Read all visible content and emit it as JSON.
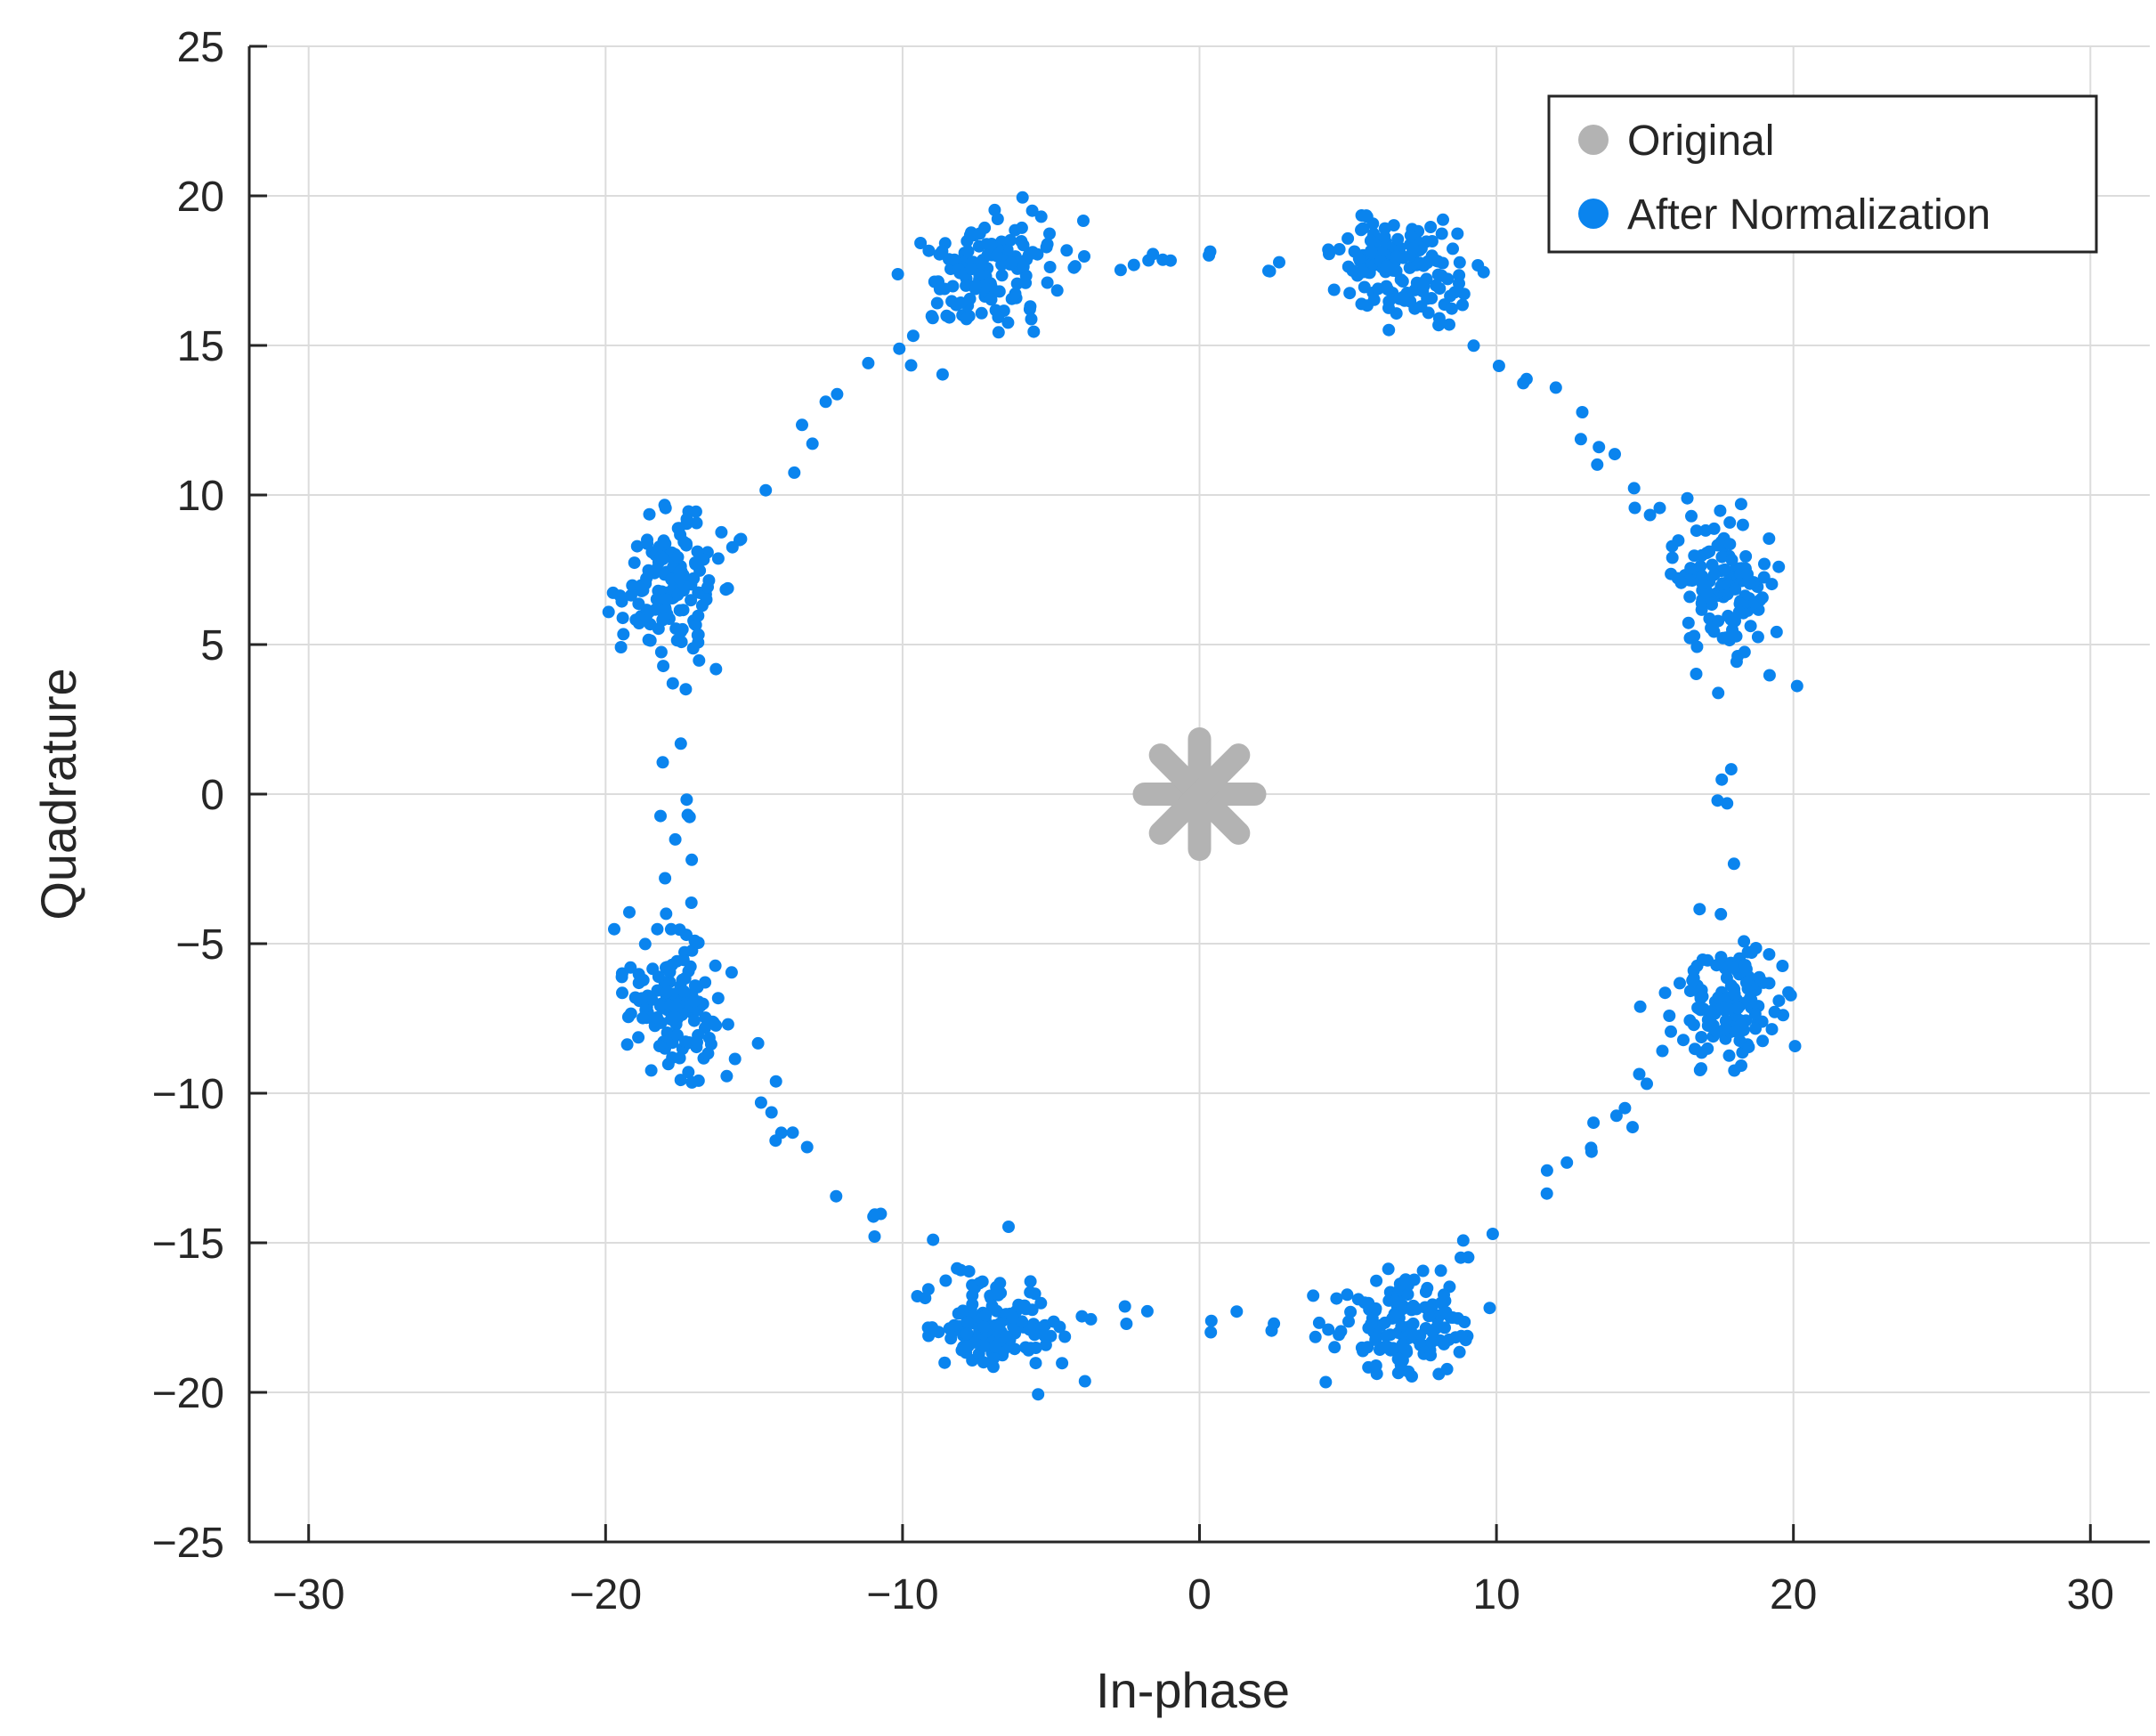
{
  "chart_data": {
    "type": "scatter",
    "title": "",
    "xlabel": "In-phase",
    "ylabel": "Quadrature",
    "xlim": [
      -32,
      32
    ],
    "ylim": [
      -25,
      25
    ],
    "xticks": [
      -30,
      -20,
      -10,
      0,
      10,
      20,
      30
    ],
    "yticks": [
      -25,
      -20,
      -15,
      -10,
      -5,
      0,
      5,
      10,
      15,
      20,
      25
    ],
    "xtick_labels": [
      "−30",
      "−20",
      "−10",
      "0",
      "10",
      "20",
      "30"
    ],
    "ytick_labels": [
      "−25",
      "−20",
      "−15",
      "−10",
      "−5",
      "0",
      "5",
      "10",
      "15",
      "20",
      "25"
    ],
    "grid": true,
    "legend_position": "top-right",
    "colors": {
      "original": "#b3b3b3",
      "normalized": "#0a84ee"
    },
    "series": [
      {
        "name": "Original",
        "marker": "asterisk",
        "points": [
          [
            0,
            0
          ]
        ]
      },
      {
        "name": "After Normalization",
        "marker": "dot",
        "clusters": [
          {
            "center": [
              6.8,
              17.6
            ],
            "count": 130
          },
          {
            "center": [
              17.8,
              7.0
            ],
            "count": 130
          },
          {
            "center": [
              17.8,
              -7.0
            ],
            "count": 130
          },
          {
            "center": [
              7.0,
              -17.7
            ],
            "count": 130
          },
          {
            "center": [
              -7.0,
              -17.7
            ],
            "count": 130
          },
          {
            "center": [
              -17.8,
              -7.0
            ],
            "count": 130
          },
          {
            "center": [
              -17.8,
              7.0
            ],
            "count": 130
          },
          {
            "center": [
              -7.0,
              17.6
            ],
            "count": 130
          }
        ],
        "transition_radius": 17.8,
        "transition_count": 150
      }
    ]
  }
}
